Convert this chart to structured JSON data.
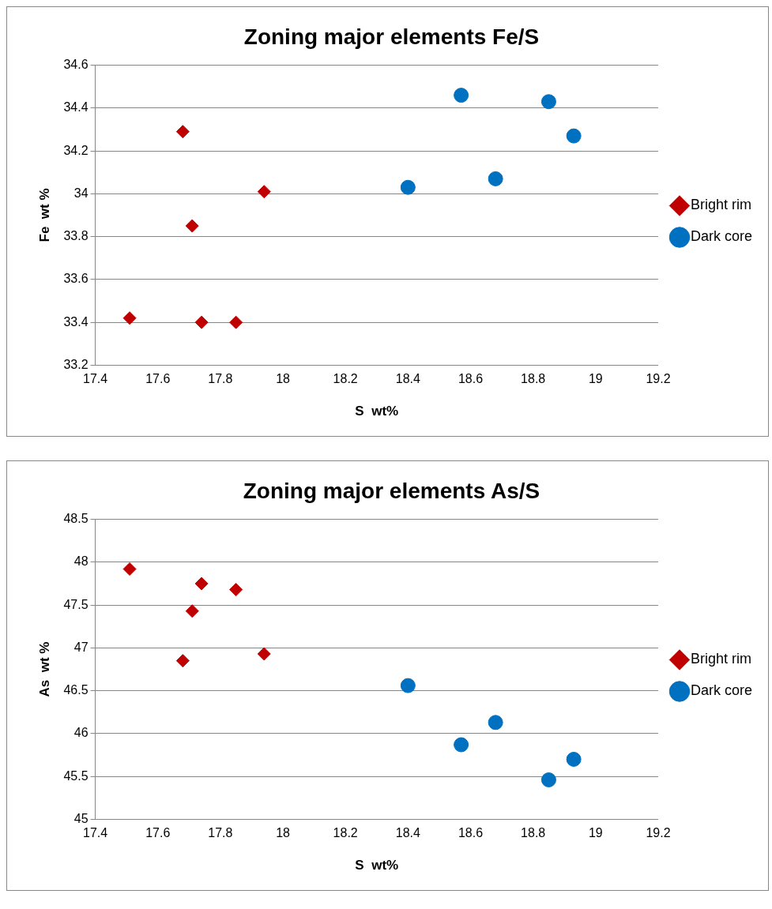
{
  "chart_data": [
    {
      "type": "scatter",
      "title": "Zoning major elements Fe/S",
      "xlabel": "S  wt%",
      "ylabel": "Fe  wt %",
      "xlim": [
        17.4,
        19.2
      ],
      "xticks": [
        17.4,
        17.6,
        17.8,
        18,
        18.2,
        18.4,
        18.6,
        18.8,
        19,
        19.2
      ],
      "ylim": [
        33.2,
        34.6
      ],
      "yticks": [
        33.2,
        33.4,
        33.6,
        33.8,
        34,
        34.2,
        34.4,
        34.6
      ],
      "grid": "y",
      "legend": "right",
      "series": [
        {
          "name": "Bright rim",
          "color": "#c00000",
          "marker": "diamond",
          "x": [
            17.51,
            17.68,
            17.71,
            17.74,
            17.85,
            17.94
          ],
          "values": [
            33.42,
            34.29,
            33.85,
            33.4,
            33.4,
            34.01
          ]
        },
        {
          "name": "Dark core",
          "color": "#0070c0",
          "marker": "circle",
          "x": [
            18.4,
            18.57,
            18.68,
            18.85,
            18.93
          ],
          "values": [
            34.03,
            34.46,
            34.07,
            34.43,
            34.27
          ]
        }
      ]
    },
    {
      "type": "scatter",
      "title": "Zoning major elements As/S",
      "xlabel": "S  wt%",
      "ylabel": "As  wt %",
      "xlim": [
        17.4,
        19.2
      ],
      "xticks": [
        17.4,
        17.6,
        17.8,
        18,
        18.2,
        18.4,
        18.6,
        18.8,
        19,
        19.2
      ],
      "ylim": [
        45,
        48.5
      ],
      "yticks": [
        45,
        45.5,
        46,
        46.5,
        47,
        47.5,
        48,
        48.5
      ],
      "grid": "y",
      "legend": "right",
      "series": [
        {
          "name": "Bright rim",
          "color": "#c00000",
          "marker": "diamond",
          "x": [
            17.51,
            17.68,
            17.71,
            17.74,
            17.85,
            17.94
          ],
          "values": [
            47.92,
            46.85,
            47.43,
            47.75,
            47.68,
            46.93
          ]
        },
        {
          "name": "Dark core",
          "color": "#0070c0",
          "marker": "circle",
          "x": [
            18.4,
            18.57,
            18.68,
            18.85,
            18.93
          ],
          "values": [
            46.56,
            45.87,
            46.13,
            45.46,
            45.7
          ]
        }
      ]
    }
  ]
}
